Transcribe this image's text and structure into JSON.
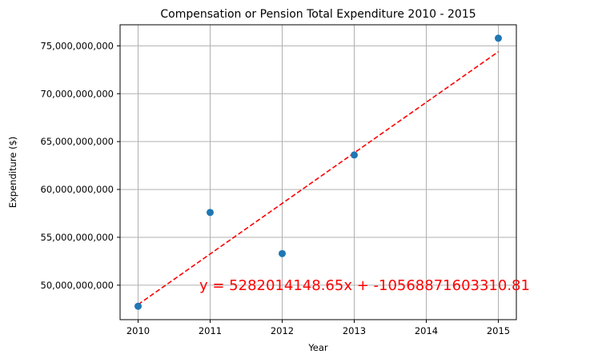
{
  "chart_data": {
    "type": "scatter",
    "title": "Compensation or Pension Total Expenditure 2010 - 2015",
    "xlabel": "Year",
    "ylabel": "Expenditure ($)",
    "xlim": [
      2009.75,
      2015.25
    ],
    "ylim": [
      46400000000,
      77200000000
    ],
    "x_ticks": [
      2010,
      2011,
      2012,
      2013,
      2014,
      2015
    ],
    "y_ticks": [
      50000000000,
      55000000000,
      60000000000,
      65000000000,
      70000000000,
      75000000000
    ],
    "y_tick_labels": [
      "50,000,000,000",
      "55,000,000,000",
      "60,000,000,000",
      "65,000,000,000",
      "70,000,000,000",
      "75,000,000,000"
    ],
    "grid": true,
    "points": [
      {
        "x": 2010,
        "y": 47800000000
      },
      {
        "x": 2011,
        "y": 57600000000
      },
      {
        "x": 2012,
        "y": 53300000000
      },
      {
        "x": 2013,
        "y": 63600000000
      },
      {
        "x": 2014,
        "y": null
      },
      {
        "x": 2015,
        "y": 75800000000
      }
    ],
    "trendline": {
      "slope": 5282014148.65,
      "intercept": -10568871603310.81,
      "x_range": [
        2010,
        2015
      ],
      "color": "#ff0000",
      "style": "dashed"
    },
    "annotation": "y = 5282014148.65x + -10568871603310.81",
    "point_color": "#1f77b4",
    "grid_color": "#b0b0b0"
  }
}
